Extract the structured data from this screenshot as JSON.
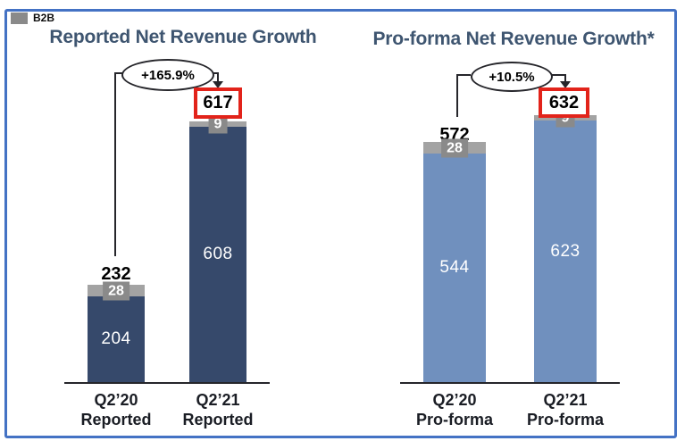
{
  "legend": {
    "label": "B2B"
  },
  "colors": {
    "frame": "#4472C4",
    "navy": "#36496B",
    "blue": "#7090BE",
    "strip": "#A3A3A3",
    "badge": "#8A8A8A",
    "red": "#E2231A",
    "title": "#3E5570",
    "text": "#1A1D24",
    "line": "#26262B"
  },
  "chart_data": [
    {
      "type": "bar",
      "stacked": true,
      "grid": false,
      "y_axis_visible": false,
      "title": "Reported Net Revenue Growth",
      "growth_annotation": "+165.9%",
      "categories": [
        "Q2’20 Reported",
        "Q2’21 Reported"
      ],
      "categories_lines": [
        [
          "Q2’20",
          "Reported"
        ],
        [
          "Q2’21",
          "Reported"
        ]
      ],
      "series": [
        {
          "name": "",
          "values": [
            204,
            608
          ]
        },
        {
          "name": "B2B",
          "values": [
            28,
            9
          ]
        }
      ],
      "totals": [
        232,
        617
      ],
      "highlighted_total_index": 1,
      "legend_position": "top-left"
    },
    {
      "type": "bar",
      "stacked": true,
      "grid": false,
      "y_axis_visible": false,
      "title": "Pro-forma Net Revenue Growth*",
      "growth_annotation": "+10.5%",
      "categories": [
        "Q2’20 Pro-forma",
        "Q2’21 Pro-forma"
      ],
      "categories_lines": [
        [
          "Q2’20",
          "Pro-forma"
        ],
        [
          "Q2’21",
          "Pro-forma"
        ]
      ],
      "series": [
        {
          "name": "",
          "values": [
            544,
            623
          ]
        },
        {
          "name": "B2B",
          "values": [
            28,
            9
          ]
        }
      ],
      "totals": [
        572,
        632
      ],
      "highlighted_total_index": 1,
      "legend_position": "top-left"
    }
  ]
}
